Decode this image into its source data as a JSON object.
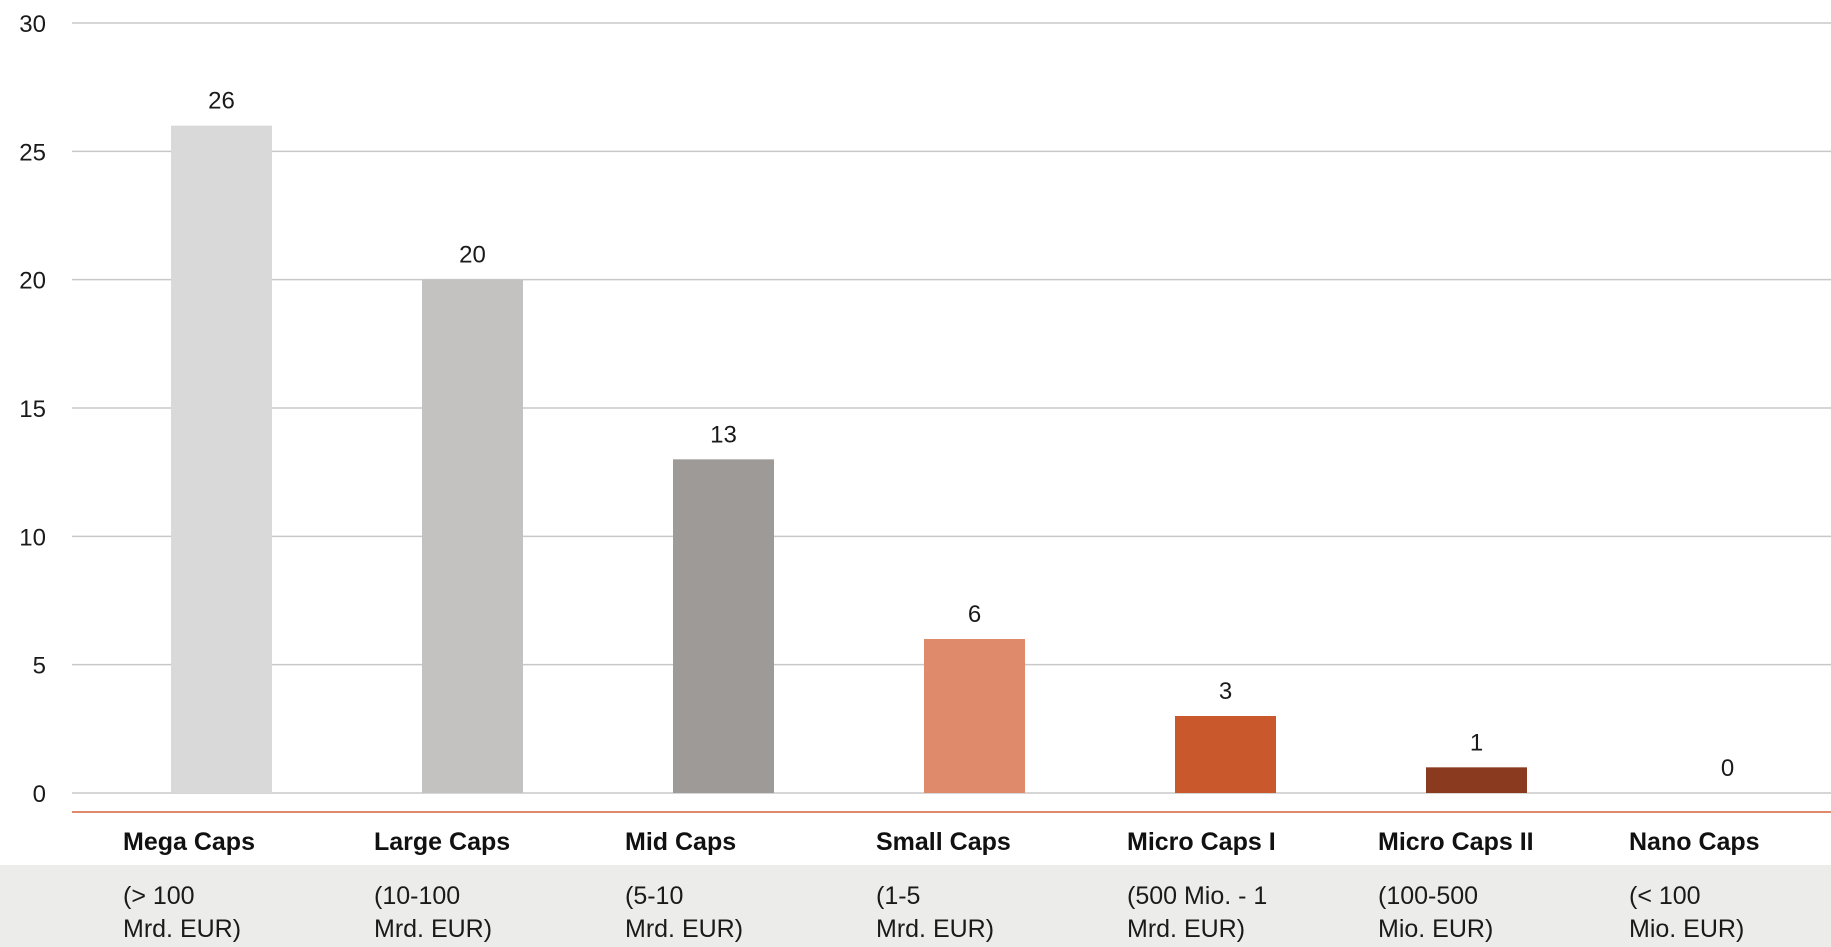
{
  "chart_data": {
    "type": "bar",
    "categories": [
      {
        "name": "Mega Caps",
        "range_line1": "(> 100",
        "range_line2": "Mrd. EUR)"
      },
      {
        "name": "Large Caps",
        "range_line1": "(10-100",
        "range_line2": "Mrd. EUR)"
      },
      {
        "name": "Mid Caps",
        "range_line1": "(5-10",
        "range_line2": "Mrd. EUR)"
      },
      {
        "name": "Small Caps",
        "range_line1": "(1-5",
        "range_line2": "Mrd. EUR)"
      },
      {
        "name": "Micro Caps I",
        "range_line1": "(500 Mio. - 1",
        "range_line2": "Mrd. EUR)"
      },
      {
        "name": "Micro Caps II",
        "range_line1": "(100-500",
        "range_line2": "Mio. EUR)"
      },
      {
        "name": "Nano Caps",
        "range_line1": "(< 100",
        "range_line2": "Mio. EUR)"
      }
    ],
    "values": [
      26,
      20,
      13,
      6,
      3,
      1,
      0
    ],
    "data_labels": [
      "26",
      "20",
      "13",
      "6",
      "3",
      "1",
      "0"
    ],
    "bar_colors": [
      "#d9d9d9",
      "#c3c2c0",
      "#9e9a97",
      "#e08a6c",
      "#c9582d",
      "#8a3a1e",
      "#7a2e16"
    ],
    "ylim": [
      0,
      30
    ],
    "yticks": [
      0,
      5,
      10,
      15,
      20,
      25,
      30
    ],
    "ytick_labels": [
      "0",
      "5",
      "10",
      "15",
      "20",
      "25",
      "30"
    ],
    "grid": true,
    "gridline_color": "#c8c8c8",
    "baseline_color": "#e08a6c",
    "range_band_color": "#ececea",
    "legend": "none"
  }
}
